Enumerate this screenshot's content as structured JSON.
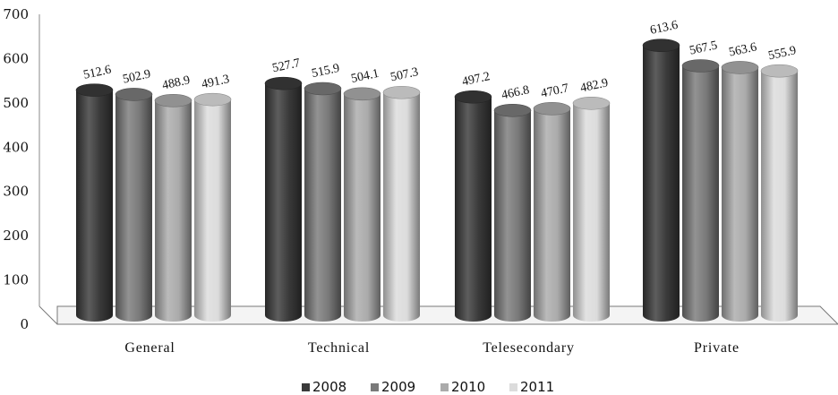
{
  "chart_data": {
    "type": "bar",
    "categories": [
      "General",
      "Technical",
      "Telesecondary",
      "Private"
    ],
    "series": [
      {
        "name": "2008",
        "values": [
          512.6,
          527.7,
          497.2,
          613.6
        ]
      },
      {
        "name": "2009",
        "values": [
          502.9,
          515.9,
          466.8,
          567.5
        ]
      },
      {
        "name": "2010",
        "values": [
          488.9,
          504.1,
          470.7,
          563.6
        ]
      },
      {
        "name": "2011",
        "values": [
          491.3,
          507.3,
          482.9,
          555.9
        ]
      }
    ],
    "data_labels": [
      [
        "512.6",
        "502.9",
        "488.9",
        "491.3"
      ],
      [
        "527.7",
        "515.9",
        "504.1",
        "507.3"
      ],
      [
        "497.2",
        "466.8",
        "470.7",
        "482.9"
      ],
      [
        "613.6",
        "567.5",
        "563.6",
        "555.9"
      ]
    ],
    "y_ticks": [
      "0",
      "100",
      "200",
      "300",
      "400",
      "500",
      "600",
      "700"
    ],
    "ylim": [
      0,
      700
    ],
    "grid": false,
    "legend_position": "bottom",
    "style": "3d-cylinder",
    "colors": [
      "#3a3a3a",
      "#7a7a7a",
      "#ababab",
      "#dcdcdc"
    ]
  }
}
